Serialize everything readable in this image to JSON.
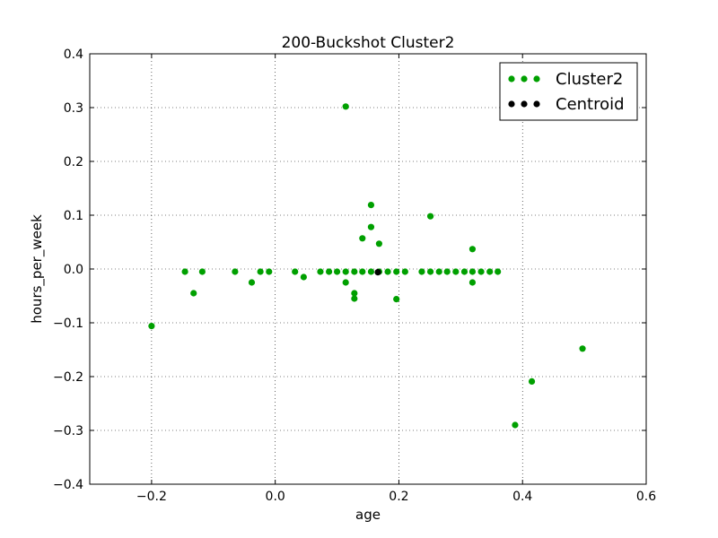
{
  "chart_data": {
    "type": "scatter",
    "title": "200-Buckshot Cluster2",
    "xlabel": "age",
    "ylabel": "hours_per_week",
    "xlim": [
      -0.3,
      0.6
    ],
    "ylim": [
      -0.4,
      0.4
    ],
    "xticks": [
      -0.2,
      0.0,
      0.2,
      0.4,
      0.6
    ],
    "xtick_labels": [
      "−0.2",
      "0.0",
      "0.2",
      "0.4",
      "0.6"
    ],
    "yticks": [
      -0.4,
      -0.3,
      -0.2,
      -0.1,
      0.0,
      0.1,
      0.2,
      0.3,
      0.4
    ],
    "ytick_labels": [
      "−0.4",
      "−0.3",
      "−0.2",
      "−0.1",
      "0.0",
      "0.1",
      "0.2",
      "0.3",
      "0.4"
    ],
    "grid": true,
    "legend_position": "top-right",
    "series": [
      {
        "name": "Cluster2",
        "color": "#00a000",
        "points": [
          [
            -0.2,
            -0.106
          ],
          [
            -0.146,
            -0.005
          ],
          [
            -0.132,
            -0.045
          ],
          [
            -0.118,
            -0.005
          ],
          [
            -0.065,
            -0.005
          ],
          [
            -0.038,
            -0.025
          ],
          [
            -0.024,
            -0.005
          ],
          [
            -0.01,
            -0.005
          ],
          [
            0.032,
            -0.005
          ],
          [
            0.046,
            -0.015
          ],
          [
            0.073,
            -0.005
          ],
          [
            0.087,
            -0.005
          ],
          [
            0.1,
            -0.005
          ],
          [
            0.114,
            -0.005
          ],
          [
            0.114,
            -0.025
          ],
          [
            0.114,
            0.302
          ],
          [
            0.128,
            -0.005
          ],
          [
            0.128,
            -0.045
          ],
          [
            0.128,
            -0.055
          ],
          [
            0.141,
            -0.005
          ],
          [
            0.141,
            0.057
          ],
          [
            0.155,
            -0.005
          ],
          [
            0.155,
            0.119
          ],
          [
            0.155,
            0.078
          ],
          [
            0.168,
            -0.005
          ],
          [
            0.168,
            0.047
          ],
          [
            0.182,
            -0.005
          ],
          [
            0.196,
            -0.005
          ],
          [
            0.196,
            -0.056
          ],
          [
            0.21,
            -0.005
          ],
          [
            0.237,
            -0.005
          ],
          [
            0.251,
            -0.005
          ],
          [
            0.251,
            0.098
          ],
          [
            0.265,
            -0.005
          ],
          [
            0.278,
            -0.005
          ],
          [
            0.292,
            -0.005
          ],
          [
            0.306,
            -0.005
          ],
          [
            0.319,
            -0.005
          ],
          [
            0.319,
            0.037
          ],
          [
            0.319,
            -0.025
          ],
          [
            0.333,
            -0.005
          ],
          [
            0.347,
            -0.005
          ],
          [
            0.36,
            -0.005
          ],
          [
            0.388,
            -0.29
          ],
          [
            0.415,
            -0.209
          ],
          [
            0.497,
            -0.148
          ]
        ]
      },
      {
        "name": "Centroid",
        "color": "#000000",
        "points": [
          [
            0.166,
            -0.006
          ]
        ]
      }
    ]
  }
}
